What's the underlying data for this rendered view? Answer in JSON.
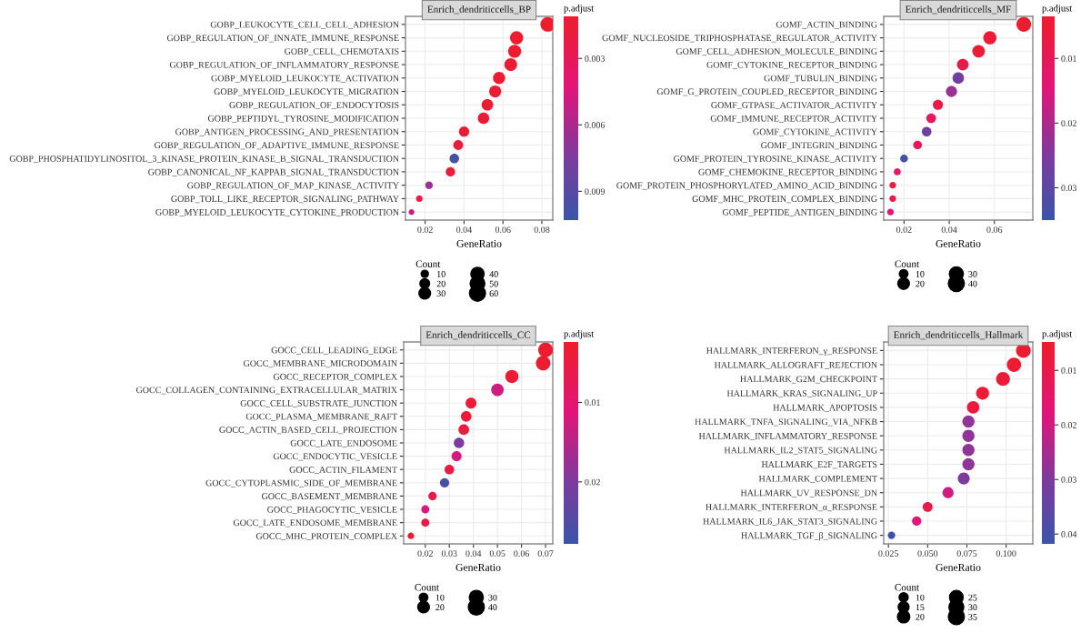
{
  "chart_data": [
    {
      "type": "bubble",
      "orientation": "horizontal",
      "title": "Enrich_dendriticcells_BP",
      "xlabel": "GeneRatio",
      "clabel": "p.adjust",
      "legend_title": "Count",
      "grid": true,
      "categories": [
        "GOBP_LEUKOCYTE_CELL_CELL_ADHESION",
        "GOBP_REGULATION_OF_INNATE_IMMUNE_RESPONSE",
        "GOBP_CELL_CHEMOTAXIS",
        "GOBP_REGULATION_OF_INFLAMMATORY_RESPONSE",
        "GOBP_MYELOID_LEUKOCYTE_ACTIVATION",
        "GOBP_MYELOID_LEUKOCYTE_MIGRATION",
        "GOBP_REGULATION_OF_ENDOCYTOSIS",
        "GOBP_PEPTIDYL_TYROSINE_MODIFICATION",
        "GOBP_ANTIGEN_PROCESSING_AND_PRESENTATION",
        "GOBP_REGULATION_OF_ADAPTIVE_IMMUNE_RESPONSE",
        "GOBP_PHOSPHATIDYLINOSITOL_3_KINASE_PROTEIN_KINASE_B_SIGNAL_TRANSDUCTION",
        "GOBP_CANONICAL_NF_KAPPAB_SIGNAL_TRANSDUCTION",
        "GOBP_REGULATION_OF_MAP_KINASE_ACTIVITY",
        "GOBP_TOLL_LIKE_RECEPTOR_SIGNALING_PATHWAY",
        "GOBP_MYELOID_LEUKOCYTE_CYTOKINE_PRODUCTION"
      ],
      "values": [
        0.083,
        0.067,
        0.066,
        0.064,
        0.058,
        0.056,
        0.052,
        0.05,
        0.04,
        0.037,
        0.035,
        0.033,
        0.022,
        0.017,
        0.013
      ],
      "sizes": [
        59,
        48,
        47,
        45,
        41,
        40,
        37,
        36,
        29,
        27,
        25,
        24,
        16,
        12,
        9
      ],
      "cvalues": [
        0.0012,
        0.0013,
        0.0013,
        0.0014,
        0.0014,
        0.0015,
        0.0015,
        0.0016,
        0.0017,
        0.0018,
        0.01,
        0.0018,
        0.0065,
        0.002,
        0.005
      ],
      "size_legend": [
        10,
        20,
        30,
        40,
        50,
        60
      ],
      "clim": [
        0.0011,
        0.0103
      ],
      "cticks": [
        0.003,
        0.006,
        0.009
      ],
      "xlim": [
        0.0099,
        0.0856
      ],
      "xticks": [
        0.02,
        0.04,
        0.06,
        0.08
      ]
    },
    {
      "type": "bubble",
      "orientation": "horizontal",
      "title": "Enrich_dendriticcells_MF",
      "xlabel": "GeneRatio",
      "clabel": "p.adjust",
      "legend_title": "Count",
      "grid": true,
      "categories": [
        "GOMF_ACTIN_BINDING",
        "GOMF_NUCLEOSIDE_TRIPHOSPHATASE_REGULATOR_ACTIVITY",
        "GOMF_CELL_ADHESION_MOLECULE_BINDING",
        "GOMF_CYTOKINE_RECEPTOR_BINDING",
        "GOMF_TUBULIN_BINDING",
        "GOMF_G_PROTEIN_COUPLED_RECEPTOR_BINDING",
        "GOMF_GTPASE_ACTIVATOR_ACTIVITY",
        "GOMF_IMMUNE_RECEPTOR_ACTIVITY",
        "GOMF_CYTOKINE_ACTIVITY",
        "GOMF_INTEGRIN_BINDING",
        "GOMF_PROTEIN_TYROSINE_KINASE_ACTIVITY",
        "GOMF_CHEMOKINE_RECEPTOR_BINDING",
        "GOMF_PROTEIN_PHOSPHORYLATED_AMINO_ACID_BINDING",
        "GOMF_MHC_PROTEIN_COMPLEX_BINDING",
        "GOMF_PEPTIDE_ANTIGEN_BINDING"
      ],
      "values": [
        0.073,
        0.058,
        0.053,
        0.046,
        0.044,
        0.041,
        0.035,
        0.032,
        0.03,
        0.026,
        0.02,
        0.017,
        0.015,
        0.015,
        0.014
      ],
      "sizes": [
        40,
        32,
        29,
        25,
        24,
        23,
        19,
        17,
        17,
        14,
        11,
        9,
        8,
        8,
        8
      ],
      "cvalues": [
        0.004,
        0.005,
        0.005,
        0.008,
        0.027,
        0.022,
        0.008,
        0.01,
        0.027,
        0.01,
        0.034,
        0.012,
        0.006,
        0.008,
        0.014
      ],
      "size_legend": [
        10,
        20,
        30,
        40
      ],
      "clim": [
        0.0035,
        0.035
      ],
      "cticks": [
        0.01,
        0.02,
        0.03
      ],
      "xlim": [
        0.011,
        0.077
      ],
      "xticks": [
        0.02,
        0.04,
        0.06
      ]
    },
    {
      "type": "bubble",
      "orientation": "horizontal",
      "title": "Enrich_dendriticcells_CC",
      "xlabel": "GeneRatio",
      "clabel": "p.adjust",
      "legend_title": "Count",
      "grid": true,
      "categories": [
        "GOCC_CELL_LEADING_EDGE",
        "GOCC_MEMBRANE_MICRODOMAIN",
        "GOCC_RECEPTOR_COMPLEX",
        "GOCC_COLLAGEN_CONTAINING_EXTRACELLULAR_MATRIX",
        "GOCC_CELL_SUBSTRATE_JUNCTION",
        "GOCC_PLASMA_MEMBRANE_RAFT",
        "GOCC_ACTIN_BASED_CELL_PROJECTION",
        "GOCC_LATE_ENDOSOME",
        "GOCC_ENDOCYTIC_VESICLE",
        "GOCC_ACTIN_FILAMENT",
        "GOCC_CYTOPLASMIC_SIDE_OF_MEMBRANE",
        "GOCC_BASEMENT_MEMBRANE",
        "GOCC_PHAGOCYTIC_VESICLE",
        "GOCC_LATE_ENDOSOME_MEMBRANE",
        "GOCC_MHC_PROTEIN_COMPLEX"
      ],
      "values": [
        0.07,
        0.069,
        0.056,
        0.05,
        0.039,
        0.037,
        0.036,
        0.034,
        0.033,
        0.03,
        0.028,
        0.023,
        0.02,
        0.02,
        0.014
      ],
      "sizes": [
        40,
        39,
        32,
        29,
        22,
        21,
        21,
        20,
        19,
        17,
        16,
        13,
        12,
        12,
        8
      ],
      "cvalues": [
        0.003,
        0.003,
        0.004,
        0.013,
        0.004,
        0.004,
        0.005,
        0.02,
        0.012,
        0.005,
        0.026,
        0.006,
        0.012,
        0.006,
        0.004
      ],
      "size_legend": [
        10,
        20,
        30,
        40
      ],
      "clim": [
        0.0024,
        0.0278
      ],
      "cticks": [
        0.01,
        0.02
      ],
      "xlim": [
        0.011,
        0.073
      ],
      "xticks": [
        0.02,
        0.03,
        0.04,
        0.05,
        0.06,
        0.07
      ]
    },
    {
      "type": "bubble",
      "orientation": "horizontal",
      "title": "Enrich_dendriticcells_Hallmark",
      "xlabel": "GeneRatio",
      "clabel": "p.adjust",
      "legend_title": "Count",
      "grid": true,
      "categories": [
        "HALLMARK_INTERFERON_γ_RESPONSE",
        "HALLMARK_ALLOGRAFT_REJECTION",
        "HALLMARK_G2M_CHECKPOINT",
        "HALLMARK_KRAS_SIGNALING_UP",
        "HALLMARK_APOPTOSIS",
        "HALLMARK_TNFA_SIGNALING_VIA_NFKB",
        "HALLMARK_INFLAMMATORY_RESPONSE",
        "HALLMARK_IL2_STAT5_SIGNALING",
        "HALLMARK_E2F_TARGETS",
        "HALLMARK_COMPLEMENT",
        "HALLMARK_UV_RESPONSE_DN",
        "HALLMARK_INTERFERON_α_RESPONSE",
        "HALLMARK_IL6_JAK_STAT3_SIGNALING",
        "HALLMARK_TGF_β_SIGNALING"
      ],
      "values": [
        0.111,
        0.105,
        0.098,
        0.085,
        0.079,
        0.076,
        0.076,
        0.076,
        0.076,
        0.073,
        0.063,
        0.05,
        0.043,
        0.027
      ],
      "sizes": [
        35,
        33,
        31,
        27,
        25,
        24,
        24,
        24,
        24,
        23,
        20,
        16,
        14,
        9
      ],
      "cvalues": [
        0.006,
        0.006,
        0.007,
        0.007,
        0.008,
        0.028,
        0.028,
        0.028,
        0.028,
        0.03,
        0.02,
        0.01,
        0.018,
        0.041
      ],
      "size_legend": [
        10,
        15,
        20,
        25,
        30,
        35
      ],
      "clim": [
        0.0048,
        0.0418
      ],
      "cticks": [
        0.01,
        0.02,
        0.03,
        0.04
      ],
      "xlim": [
        0.022,
        0.117
      ],
      "xticks": [
        0.025,
        {
          "value": 0.05,
          "label": "0.050"
        },
        0.075,
        {
          "value": 0.1,
          "label": "0.100"
        }
      ]
    }
  ]
}
